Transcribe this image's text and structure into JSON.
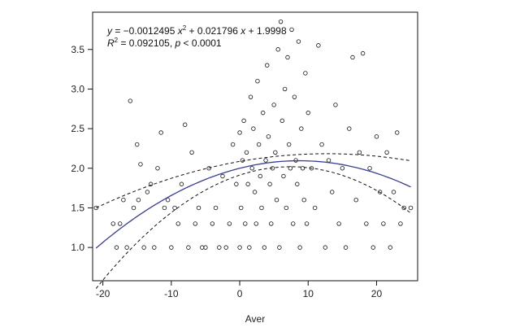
{
  "chart_data": {
    "type": "scatter",
    "xlabel": "Aver",
    "ylabel": "",
    "xlim": [
      -21.5,
      26
    ],
    "ylim": [
      0.58,
      3.97
    ],
    "x_ticks": [
      -20,
      -10,
      0,
      10,
      20
    ],
    "y_ticks": [
      1.0,
      1.5,
      2.0,
      2.5,
      3.0,
      3.5
    ],
    "annotation": {
      "equation": "y = −0.0012495 x² + 0.021796 x + 1.9998",
      "line1": {
        "y": "y",
        "eq": " = −0.0012495 ",
        "x1": "x",
        "sup": "2",
        "rest": " + 0.021796 ",
        "x2": "x",
        "tail": " + 1.9998"
      },
      "line2": {
        "r": "R",
        "sup": "2",
        "rest": " = 0.092105,  ",
        "p": "p",
        "tail": " < 0.0001"
      }
    },
    "fit": {
      "a": -0.0012495,
      "b": 0.021796,
      "c": 1.9998,
      "x_range": [
        -21,
        25
      ],
      "color": "#3a3f8f"
    },
    "confidence_band": {
      "style": "dashed",
      "color": "#111111"
    },
    "series": [
      {
        "points": [
          [
            -21,
            1.5
          ],
          [
            -18.5,
            1.3
          ],
          [
            -18,
            1.0
          ],
          [
            -17.5,
            1.3
          ],
          [
            -17,
            1.6
          ],
          [
            -16.5,
            1.0
          ],
          [
            -16,
            2.85
          ],
          [
            -15.5,
            1.5
          ],
          [
            -15,
            2.3
          ],
          [
            -14.8,
            1.6
          ],
          [
            -14.5,
            2.05
          ],
          [
            -14,
            1.0
          ],
          [
            -13.5,
            1.7
          ],
          [
            -13,
            1.8
          ],
          [
            -12.5,
            1.0
          ],
          [
            -12,
            2.0
          ],
          [
            -11.5,
            2.45
          ],
          [
            -11,
            1.5
          ],
          [
            -10.5,
            1.6
          ],
          [
            -10,
            1.0
          ],
          [
            -9.5,
            1.5
          ],
          [
            -9,
            1.3
          ],
          [
            -8.5,
            1.8
          ],
          [
            -8,
            2.55
          ],
          [
            -7.5,
            1.0
          ],
          [
            -7,
            2.2
          ],
          [
            -6.5,
            1.3
          ],
          [
            -6,
            1.5
          ],
          [
            -5.5,
            1.0
          ],
          [
            -5,
            1.0
          ],
          [
            -4.5,
            2.0
          ],
          [
            -4,
            1.3
          ],
          [
            -3.5,
            1.5
          ],
          [
            -3,
            1.0
          ],
          [
            -2.5,
            1.9
          ],
          [
            -2,
            1.0
          ],
          [
            -1.5,
            1.3
          ],
          [
            -1,
            2.3
          ],
          [
            -0.5,
            1.8
          ],
          [
            0,
            2.45
          ],
          [
            0,
            1.0
          ],
          [
            0.2,
            1.5
          ],
          [
            0.4,
            2.1
          ],
          [
            0.6,
            2.6
          ],
          [
            0.8,
            1.3
          ],
          [
            1,
            2.2
          ],
          [
            1.2,
            1.8
          ],
          [
            1.4,
            1.0
          ],
          [
            1.6,
            2.9
          ],
          [
            1.8,
            2.0
          ],
          [
            2,
            2.5
          ],
          [
            2.2,
            1.7
          ],
          [
            2.4,
            1.3
          ],
          [
            2.6,
            3.1
          ],
          [
            2.8,
            2.3
          ],
          [
            3,
            1.9
          ],
          [
            3.2,
            1.5
          ],
          [
            3.4,
            2.7
          ],
          [
            3.6,
            1.0
          ],
          [
            3.8,
            2.1
          ],
          [
            4,
            3.3
          ],
          [
            4.2,
            2.4
          ],
          [
            4.4,
            1.8
          ],
          [
            4.6,
            1.3
          ],
          [
            4.8,
            2.0
          ],
          [
            5,
            2.8
          ],
          [
            5.2,
            2.2
          ],
          [
            5.4,
            1.6
          ],
          [
            5.6,
            3.5
          ],
          [
            5.8,
            1.0
          ],
          [
            6,
            3.85
          ],
          [
            6.2,
            2.6
          ],
          [
            6.4,
            1.9
          ],
          [
            6.6,
            3.0
          ],
          [
            6.8,
            1.5
          ],
          [
            7,
            3.4
          ],
          [
            7.2,
            2.3
          ],
          [
            7.4,
            2.0
          ],
          [
            7.6,
            3.75
          ],
          [
            7.8,
            1.3
          ],
          [
            8,
            2.9
          ],
          [
            8.2,
            2.1
          ],
          [
            8.4,
            1.8
          ],
          [
            8.6,
            3.6
          ],
          [
            8.8,
            1.0
          ],
          [
            9,
            2.5
          ],
          [
            9.2,
            2.0
          ],
          [
            9.4,
            1.6
          ],
          [
            9.6,
            3.2
          ],
          [
            9.8,
            1.3
          ],
          [
            10,
            2.7
          ],
          [
            10.5,
            2.0
          ],
          [
            11,
            1.5
          ],
          [
            11.5,
            3.55
          ],
          [
            12,
            2.3
          ],
          [
            12.5,
            1.0
          ],
          [
            13,
            2.1
          ],
          [
            13.5,
            1.7
          ],
          [
            14,
            2.8
          ],
          [
            14.5,
            1.3
          ],
          [
            15,
            2.0
          ],
          [
            15.5,
            1.0
          ],
          [
            16,
            2.5
          ],
          [
            16.5,
            3.4
          ],
          [
            17,
            1.6
          ],
          [
            17.5,
            2.2
          ],
          [
            18,
            3.45
          ],
          [
            18.5,
            1.3
          ],
          [
            19,
            2.0
          ],
          [
            19.5,
            1.0
          ],
          [
            20,
            2.4
          ],
          [
            20.5,
            1.7
          ],
          [
            21,
            1.3
          ],
          [
            21.5,
            2.2
          ],
          [
            22,
            1.0
          ],
          [
            22.5,
            1.7
          ],
          [
            23,
            2.45
          ],
          [
            23.5,
            1.3
          ],
          [
            24,
            1.5
          ],
          [
            25,
            1.5
          ]
        ]
      }
    ]
  }
}
